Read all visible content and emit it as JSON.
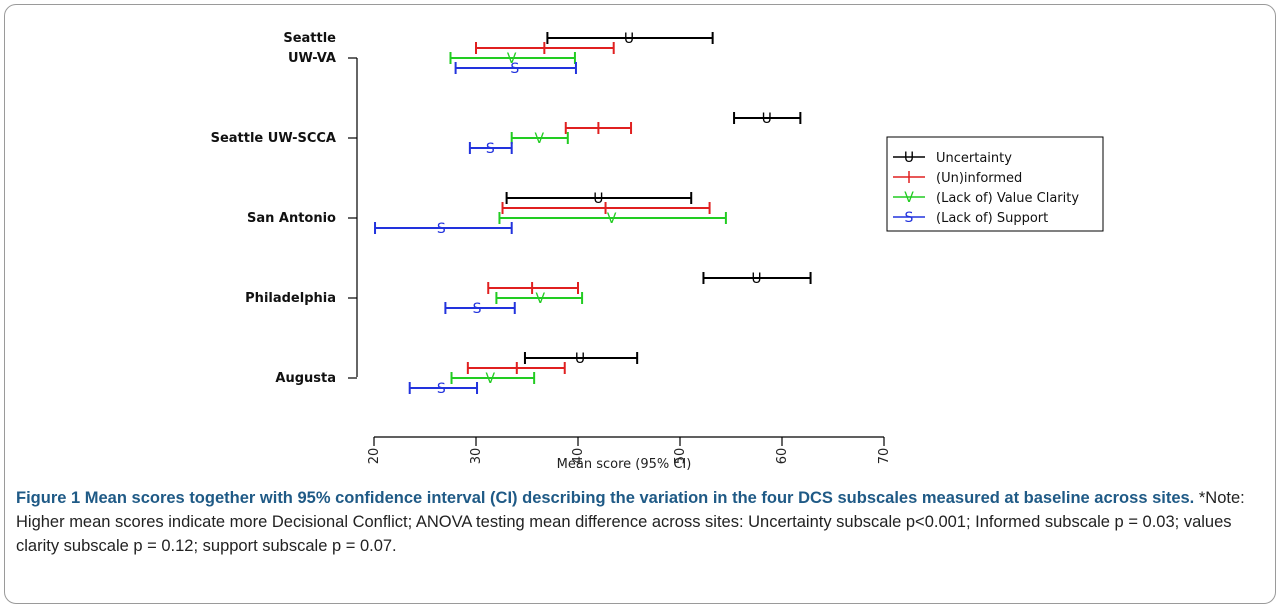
{
  "chart_data": {
    "type": "errorbar",
    "categories": [
      "Seattle\nUW-VA",
      "Seattle UW-SCCA",
      "San Antonio",
      "Philadelphia",
      "Augusta"
    ],
    "xlabel": "Mean score (95% CI)",
    "xlim": [
      20,
      70
    ],
    "xticks": [
      "20",
      "30",
      "40",
      "50",
      "60",
      "70"
    ],
    "grid": false,
    "legend_position": "right",
    "series": [
      {
        "name": "Uncertainty",
        "marker": "U",
        "color": "#000000",
        "means": [
          45,
          58.5,
          42,
          57.5,
          40.2
        ],
        "lower": [
          37,
          55.3,
          33,
          52.3,
          34.8
        ],
        "upper": [
          53.2,
          61.8,
          51.1,
          62.8,
          45.8
        ]
      },
      {
        "name": "(Un)informed",
        "marker": "I",
        "color": "#e02020",
        "means": [
          36.7,
          42,
          42.7,
          35.5,
          34
        ],
        "lower": [
          30,
          38.8,
          32.6,
          31.2,
          29.2
        ],
        "upper": [
          43.5,
          45.2,
          52.9,
          40,
          38.7
        ]
      },
      {
        "name": "(Lack of) Value Clarity",
        "marker": "V",
        "color": "#22cc22",
        "means": [
          33.5,
          36.2,
          43.3,
          36.3,
          31.4
        ],
        "lower": [
          27.5,
          33.5,
          32.3,
          32,
          27.6
        ],
        "upper": [
          39.7,
          39,
          54.5,
          40.4,
          35.7
        ]
      },
      {
        "name": "(Lack of) Support",
        "marker": "S",
        "color": "#2233dd",
        "means": [
          33.8,
          31.4,
          26.6,
          30.1,
          26.6
        ],
        "lower": [
          28,
          29.4,
          20.1,
          27,
          23.5
        ],
        "upper": [
          39.8,
          33.5,
          33.5,
          33.8,
          30.1
        ]
      }
    ]
  },
  "caption": {
    "title": "Figure 1 Mean scores together with 95% confidence interval (CI) describing the variation in the four DCS subscales measured at baseline across sites.",
    "note": "*Note: Higher mean scores indicate more Decisional Conflict; ANOVA testing mean difference across sites: Uncertainty subscale p<0.001; Informed subscale p = 0.03; values clarity subscale p = 0.12; support subscale p = 0.07."
  }
}
